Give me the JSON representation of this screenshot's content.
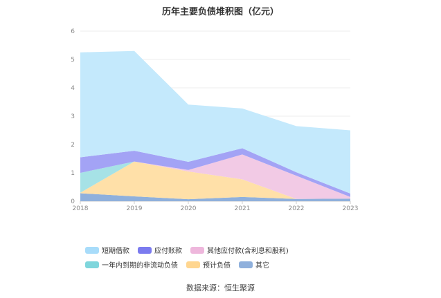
{
  "page": {
    "title": "历年主要负债堆积图（亿元）",
    "source": "数据来源：恒生聚源"
  },
  "chart_data": {
    "type": "area",
    "stacked": true,
    "title": "历年主要负债堆积图（亿元）",
    "xlabel": "",
    "ylabel": "",
    "x": [
      "2018",
      "2019",
      "2020",
      "2021",
      "2022",
      "2023"
    ],
    "ylim": [
      0,
      6
    ],
    "yticks": [
      0,
      1,
      2,
      3,
      4,
      5,
      6
    ],
    "grid": true,
    "legend_position": "bottom",
    "series": [
      {
        "name": "其它",
        "color": "#8fb0dc",
        "values": [
          0.28,
          0.17,
          0.07,
          0.15,
          0.08,
          0.09
        ]
      },
      {
        "name": "预计负债",
        "color": "#ffe0a8",
        "values": [
          0.02,
          1.23,
          0.98,
          0.62,
          0.0,
          0.0
        ]
      },
      {
        "name": "一年内到期的非流动负债",
        "color": "#a6e2e6",
        "values": [
          0.7,
          0.0,
          0.0,
          0.0,
          0.0,
          0.0
        ]
      },
      {
        "name": "其他应付款(含利息和股利)",
        "color": "#f2cae5",
        "values": [
          0.0,
          0.0,
          0.05,
          0.88,
          0.82,
          0.06
        ]
      },
      {
        "name": "应付账款",
        "color": "#a3a3f5",
        "values": [
          0.55,
          0.38,
          0.29,
          0.22,
          0.12,
          0.12
        ]
      },
      {
        "name": "短期借款",
        "color": "#c4e9fc",
        "values": [
          3.7,
          3.52,
          2.02,
          1.4,
          1.63,
          2.23
        ]
      }
    ]
  },
  "legend": [
    {
      "label": "短期借款",
      "color": "#a8dcfa"
    },
    {
      "label": "应付账款",
      "color": "#7b7bef"
    },
    {
      "label": "其他应付款(含利息和股利)",
      "color": "#eeb7dc"
    },
    {
      "label": "一年内到期的非流动负债",
      "color": "#7fd6dc"
    },
    {
      "label": "预计负债",
      "color": "#ffd690"
    },
    {
      "label": "其它",
      "color": "#8fb0dc"
    }
  ]
}
